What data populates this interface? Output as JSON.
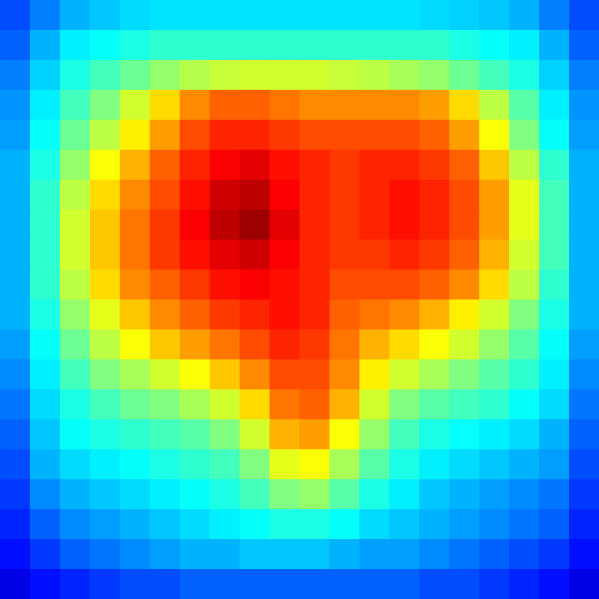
{
  "chart_data": {
    "type": "heatmap",
    "color": "jet",
    "tick_labels": false,
    "color_range": [
      0,
      100
    ],
    "cells": [
      [
        20,
        25,
        30,
        32,
        34,
        35,
        35,
        35,
        35,
        35,
        35,
        35,
        35,
        35,
        34,
        33,
        32,
        30,
        25,
        20
      ],
      [
        22,
        30,
        36,
        38,
        40,
        42,
        42,
        42,
        42,
        42,
        42,
        42,
        42,
        42,
        42,
        40,
        38,
        36,
        30,
        22
      ],
      [
        25,
        33,
        40,
        44,
        48,
        52,
        55,
        57,
        58,
        58,
        58,
        57,
        56,
        54,
        52,
        48,
        44,
        40,
        33,
        25
      ],
      [
        27,
        36,
        44,
        50,
        58,
        66,
        74,
        78,
        78,
        76,
        74,
        74,
        74,
        74,
        72,
        66,
        56,
        46,
        36,
        27
      ],
      [
        28,
        38,
        48,
        56,
        64,
        72,
        80,
        84,
        84,
        82,
        80,
        80,
        80,
        80,
        78,
        72,
        62,
        50,
        38,
        28
      ],
      [
        30,
        40,
        52,
        62,
        70,
        78,
        84,
        88,
        90,
        86,
        84,
        82,
        84,
        84,
        82,
        78,
        68,
        56,
        42,
        30
      ],
      [
        30,
        42,
        56,
        66,
        74,
        80,
        86,
        92,
        94,
        88,
        84,
        82,
        84,
        86,
        84,
        80,
        72,
        60,
        44,
        30
      ],
      [
        30,
        42,
        58,
        68,
        76,
        82,
        88,
        94,
        97,
        90,
        84,
        82,
        84,
        86,
        84,
        80,
        72,
        60,
        44,
        30
      ],
      [
        30,
        42,
        58,
        68,
        76,
        82,
        86,
        90,
        92,
        88,
        84,
        82,
        82,
        84,
        82,
        78,
        70,
        58,
        44,
        30
      ],
      [
        30,
        42,
        56,
        66,
        74,
        78,
        82,
        86,
        88,
        86,
        84,
        80,
        80,
        80,
        78,
        74,
        66,
        56,
        42,
        30
      ],
      [
        30,
        40,
        52,
        60,
        68,
        74,
        78,
        82,
        84,
        86,
        84,
        78,
        76,
        74,
        70,
        64,
        58,
        50,
        40,
        30
      ],
      [
        28,
        38,
        48,
        56,
        62,
        68,
        72,
        76,
        80,
        84,
        82,
        76,
        70,
        66,
        62,
        58,
        52,
        46,
        38,
        28
      ],
      [
        26,
        36,
        44,
        50,
        54,
        58,
        62,
        68,
        74,
        80,
        80,
        74,
        64,
        58,
        54,
        50,
        46,
        42,
        36,
        26
      ],
      [
        24,
        34,
        40,
        44,
        48,
        50,
        54,
        58,
        66,
        76,
        78,
        70,
        58,
        50,
        46,
        44,
        42,
        38,
        34,
        24
      ],
      [
        22,
        32,
        38,
        40,
        42,
        44,
        46,
        50,
        58,
        70,
        72,
        62,
        52,
        44,
        40,
        38,
        36,
        34,
        30,
        22
      ],
      [
        20,
        30,
        34,
        36,
        38,
        40,
        42,
        44,
        50,
        60,
        62,
        54,
        46,
        40,
        36,
        34,
        32,
        30,
        28,
        20
      ],
      [
        18,
        26,
        30,
        32,
        34,
        36,
        38,
        40,
        44,
        50,
        52,
        46,
        40,
        36,
        32,
        30,
        28,
        26,
        24,
        18
      ],
      [
        16,
        22,
        26,
        28,
        30,
        32,
        34,
        36,
        38,
        40,
        40,
        38,
        34,
        32,
        30,
        28,
        26,
        24,
        22,
        16
      ],
      [
        14,
        18,
        22,
        24,
        26,
        28,
        30,
        30,
        32,
        32,
        32,
        30,
        28,
        28,
        26,
        24,
        22,
        20,
        18,
        14
      ],
      [
        10,
        14,
        16,
        18,
        20,
        20,
        22,
        22,
        22,
        22,
        22,
        22,
        22,
        22,
        20,
        20,
        18,
        16,
        14,
        10
      ]
    ]
  }
}
